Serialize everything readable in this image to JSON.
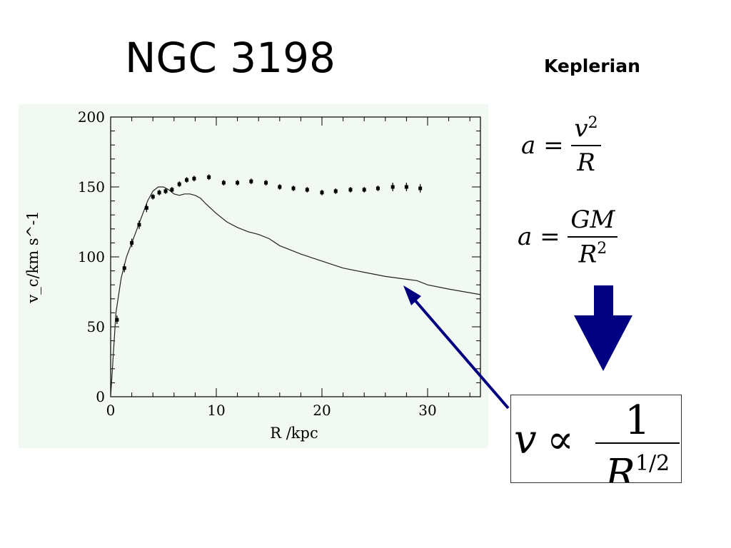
{
  "slide": {
    "title": "NGC 3198",
    "subtitle": "Keplerian"
  },
  "equations": {
    "eq1": {
      "lhs": "a =",
      "numerator": "v",
      "numerator_sup": "2",
      "denominator": "R"
    },
    "eq2": {
      "lhs": "a =",
      "numerator": "GM",
      "denominator": "R",
      "denominator_sup": "2"
    },
    "eq3": {
      "lhs": "v",
      "relation": "∝",
      "numerator": "1",
      "denominator": "R",
      "denominator_sup": "1/2"
    }
  },
  "colors": {
    "plot_background": "#f2f8f2",
    "arrow": "#000080",
    "ink": "#000000"
  },
  "chart_data": {
    "type": "scatter",
    "xlabel": "R /kpc",
    "ylabel": "v_c/km s^-1",
    "xlim": [
      0,
      35
    ],
    "ylim": [
      0,
      200
    ],
    "x_ticks": [
      0,
      10,
      20,
      30
    ],
    "y_ticks": [
      0,
      50,
      100,
      150,
      200
    ],
    "grid": false,
    "series": [
      {
        "type": "scatter_errorbar",
        "x": [
          0.6,
          1.3,
          2.0,
          2.7,
          3.4,
          4.0,
          4.6,
          5.2,
          5.8,
          6.5,
          7.2,
          7.9,
          9.3,
          10.7,
          12.0,
          13.3,
          14.7,
          16.0,
          17.3,
          18.6,
          20.0,
          21.3,
          22.7,
          24.0,
          25.3,
          26.7,
          28.0,
          29.3
        ],
        "y": [
          55,
          92,
          110,
          123,
          135,
          143,
          146,
          147,
          148,
          152,
          155,
          156,
          157,
          153,
          153,
          154,
          153,
          150,
          149,
          148,
          146,
          147,
          148,
          148,
          149,
          150,
          150,
          149
        ],
        "yerr": [
          3,
          3,
          3,
          3,
          3,
          2,
          2,
          2,
          2,
          2,
          2,
          2,
          2,
          2,
          2,
          2,
          2,
          2,
          2,
          2,
          2,
          2,
          2,
          2,
          2,
          3,
          3,
          3
        ]
      },
      {
        "type": "line",
        "x": [
          0,
          0.5,
          1,
          1.5,
          2,
          2.5,
          3,
          3.5,
          4,
          4.5,
          5,
          5.5,
          6,
          6.5,
          7,
          7.5,
          8,
          8.5,
          9,
          10,
          11,
          12,
          13,
          14,
          15,
          16,
          17,
          18,
          20,
          22,
          24,
          26,
          28,
          29,
          30,
          32,
          35
        ],
        "y": [
          0,
          60,
          85,
          100,
          110,
          120,
          130,
          140,
          147,
          150,
          150,
          148,
          145,
          144,
          145,
          145,
          144,
          142,
          138,
          131,
          125,
          121,
          118,
          116,
          113,
          108,
          105,
          102,
          97,
          92,
          89,
          86,
          84,
          83,
          80,
          77,
          73
        ]
      }
    ]
  }
}
